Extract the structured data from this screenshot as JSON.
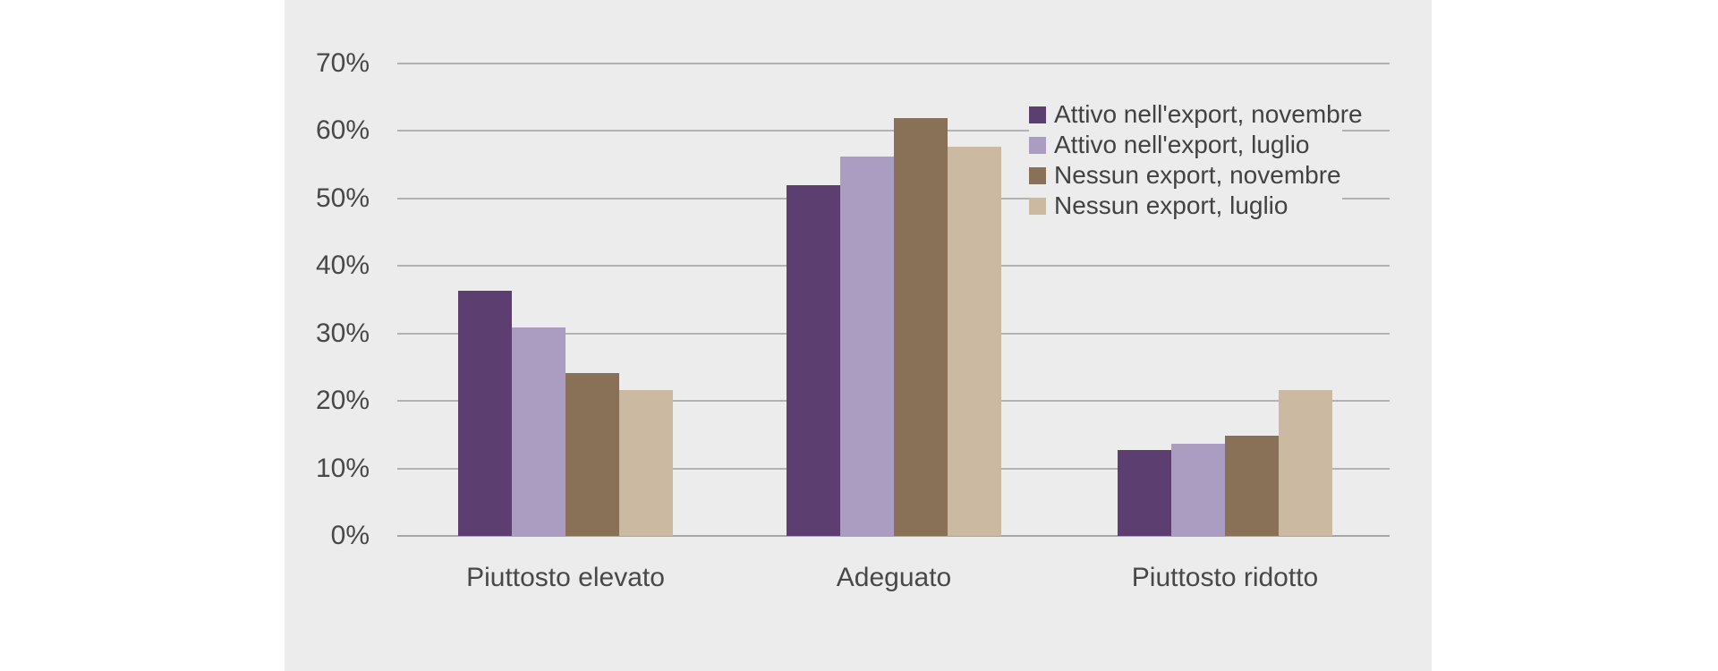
{
  "chart_data": {
    "type": "bar",
    "title": "",
    "xlabel": "",
    "ylabel": "",
    "categories": [
      "Piuttosto elevato",
      "Adeguato",
      "Piuttosto ridotto"
    ],
    "series": [
      {
        "name": "Attivo nell'export, novembre",
        "color": "#5c3f70",
        "values": [
          36.3,
          51.9,
          12.7
        ]
      },
      {
        "name": "Attivo nell'export, luglio",
        "color": "#ab9dc2",
        "values": [
          30.9,
          56.2,
          13.6
        ]
      },
      {
        "name": "Nessun export, novembre",
        "color": "#887157",
        "values": [
          24.1,
          61.9,
          14.8
        ]
      },
      {
        "name": "Nessun export, luglio",
        "color": "#cbbaa1",
        "values": [
          21.6,
          57.6,
          21.6
        ]
      }
    ],
    "ylim": [
      0,
      70
    ],
    "ytick_step": 10,
    "ytick_labels": [
      "0%",
      "10%",
      "20%",
      "30%",
      "40%",
      "50%",
      "60%",
      "70%"
    ],
    "grid": true,
    "legend_position": "upper right"
  },
  "colors": {
    "panel_background": "#ececec",
    "page_background": "#ffffff",
    "gridline": "#b2b2b2",
    "axis_baseline": "#a6a6a6",
    "text": "#484848"
  }
}
